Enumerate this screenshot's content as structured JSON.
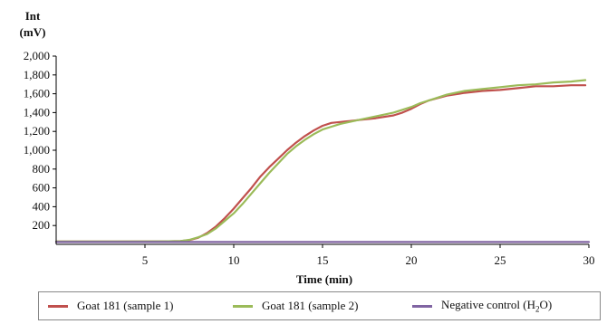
{
  "chart_data": {
    "type": "line",
    "ylabel_line1": "Int",
    "ylabel_line2": "(mV)",
    "xlabel": "Time (min)",
    "xlim": [
      0,
      30
    ],
    "ylim": [
      0,
      2000
    ],
    "x_ticks": [
      "5",
      "10",
      "15",
      "20",
      "25",
      "30"
    ],
    "x_tick_values": [
      5,
      10,
      15,
      20,
      25,
      30
    ],
    "y_ticks": [
      "200",
      "400",
      "600",
      "800",
      "1,000",
      "1,200",
      "1,400",
      "1,600",
      "1,800",
      "2,000"
    ],
    "y_tick_values": [
      200,
      400,
      600,
      800,
      1000,
      1200,
      1400,
      1600,
      1800,
      2000
    ],
    "grid": false,
    "legend_position": "bottom",
    "series": [
      {
        "name": "Goat 181 (sample 1)",
        "color": "#c0504d",
        "x": [
          0,
          6,
          7,
          7.5,
          8,
          8.5,
          9,
          9.5,
          10,
          10.5,
          11,
          11.5,
          12,
          12.5,
          13,
          13.5,
          14,
          14.5,
          15,
          15.5,
          16,
          16.5,
          17,
          18,
          19,
          19.5,
          20,
          20.5,
          21,
          22,
          23,
          24,
          25,
          26,
          27,
          28,
          29,
          29.8
        ],
        "y": [
          30,
          32,
          35,
          45,
          70,
          120,
          190,
          280,
          380,
          490,
          600,
          720,
          820,
          910,
          1000,
          1080,
          1150,
          1210,
          1260,
          1290,
          1300,
          1310,
          1320,
          1340,
          1370,
          1400,
          1440,
          1490,
          1530,
          1580,
          1610,
          1630,
          1640,
          1660,
          1680,
          1680,
          1690,
          1690
        ]
      },
      {
        "name": "Goat 181 (sample 2)",
        "color": "#9bbb59",
        "x": [
          0,
          6,
          7,
          7.5,
          8,
          8.5,
          9,
          9.5,
          10,
          10.5,
          11,
          11.5,
          12,
          12.5,
          13,
          13.5,
          14,
          14.5,
          15,
          15.5,
          16,
          16.5,
          17,
          18,
          19,
          19.5,
          20,
          20.5,
          21,
          22,
          23,
          24,
          25,
          26,
          27,
          28,
          29,
          29.8
        ],
        "y": [
          30,
          32,
          36,
          48,
          75,
          110,
          170,
          250,
          330,
          430,
          540,
          650,
          760,
          860,
          960,
          1040,
          1110,
          1170,
          1220,
          1250,
          1280,
          1300,
          1320,
          1360,
          1400,
          1430,
          1460,
          1500,
          1530,
          1590,
          1630,
          1650,
          1670,
          1690,
          1700,
          1720,
          1730,
          1745
        ]
      },
      {
        "name": "Negative control (H2O)",
        "name_main": "Negative control (H",
        "name_sub": "2",
        "name_end": "O)",
        "color": "#8064a2",
        "x": [
          0,
          30
        ],
        "y": [
          25,
          25
        ]
      }
    ]
  }
}
